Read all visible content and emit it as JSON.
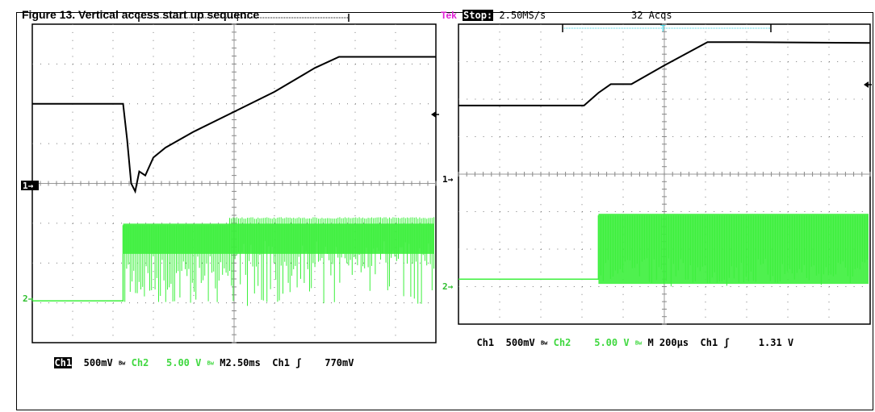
{
  "caption": "Figure 13. Vertical access start up sequence",
  "header": {
    "brand": "Tek",
    "state": "Stop:",
    "rate": "2.50MS/s",
    "acqs": "32 Acqs"
  },
  "colors": {
    "ch1": "#000000",
    "ch2": "#3cf03c",
    "trigger_bar": "#33d6e6",
    "brand": "#e021d6"
  },
  "chart_data": [
    {
      "type": "line",
      "title": "",
      "grid": true,
      "channel_markers": [
        "1",
        "2"
      ],
      "ylim": [
        0,
        8
      ],
      "xlim": [
        0,
        10
      ],
      "readout": {
        "ch1": "Ch1",
        "ch1_scale": "500mV",
        "ch2": "Ch2",
        "ch2_scale": "5.00 V",
        "timebase": "M2.50ms",
        "trig_src": "Ch1",
        "trig_slope": "ʃ",
        "trig_level": "770mV"
      },
      "series": [
        {
          "channel": "ch1",
          "x": [
            0,
            2.25,
            2.35,
            2.45,
            2.55,
            2.65,
            2.8,
            3.0,
            3.3,
            4.0,
            5.0,
            6.0,
            7.0,
            7.6,
            8.0,
            10
          ],
          "y": [
            6.0,
            6.0,
            5.1,
            4.0,
            3.8,
            4.3,
            4.2,
            4.65,
            4.9,
            5.3,
            5.8,
            6.3,
            6.9,
            7.18,
            7.18,
            7.18
          ]
        },
        {
          "channel": "ch2",
          "low_y": 1.05,
          "high_y": 2.95,
          "edge_x": 2.25,
          "burst_min_y": 0.92
        }
      ]
    },
    {
      "type": "line",
      "title": "",
      "grid": true,
      "channel_markers": [
        "1",
        "2"
      ],
      "ylim": [
        0,
        8
      ],
      "xlim": [
        0,
        10
      ],
      "readout": {
        "ch1": "Ch1",
        "ch1_scale": "500mV",
        "ch2": "Ch2",
        "ch2_scale": "5.00 V",
        "timebase": "M 200µs",
        "trig_src": "Ch1",
        "trig_slope": "ʃ",
        "trig_level": "1.31 V"
      },
      "series": [
        {
          "channel": "ch1",
          "x": [
            0,
            3.05,
            3.4,
            3.7,
            4.2,
            5.0,
            6.05,
            7.0,
            10
          ],
          "y": [
            5.83,
            5.83,
            6.17,
            6.4,
            6.4,
            6.9,
            7.52,
            7.52,
            7.5
          ]
        },
        {
          "channel": "ch2",
          "low_y": 1.2,
          "high_y": 2.9,
          "edge_x": 3.4,
          "burst_min_y": 1.0
        }
      ]
    }
  ]
}
